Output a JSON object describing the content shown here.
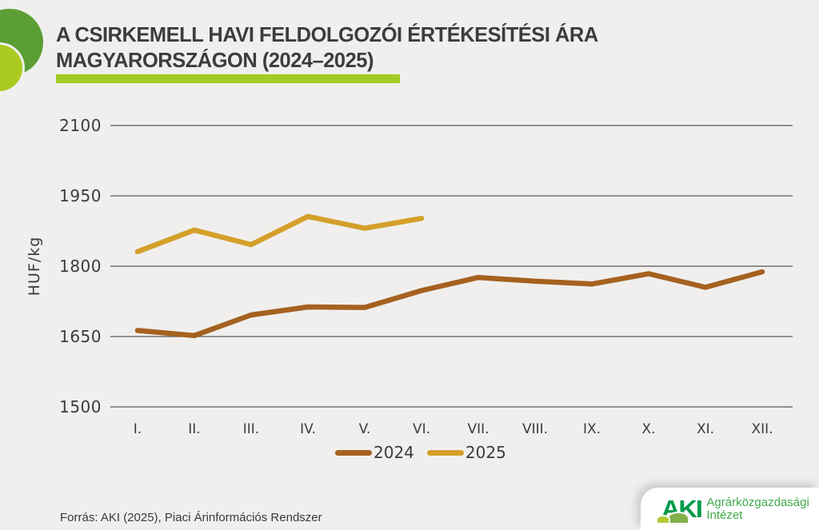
{
  "header": {
    "title_line1": "A CSIRKEMELL HAVI FELDOLGOZÓI ÉRTÉKESÍTÉSI ÁRA",
    "title_line2": "MAGYARORSZÁGON (2024–2025)"
  },
  "chart_data": {
    "type": "line",
    "title": "A csirkemell havi feldolgozói értékesítési ára Magyarországon (2024–2025)",
    "xlabel": "",
    "ylabel": "HUF/kg",
    "ylim": [
      1500,
      2100
    ],
    "yticks": [
      2100,
      1950,
      1800,
      1650,
      1500
    ],
    "categories": [
      "I.",
      "II.",
      "III.",
      "IV.",
      "V.",
      "VI.",
      "VII.",
      "VIII.",
      "IX.",
      "X.",
      "XI.",
      "XII."
    ],
    "grid": "horizontal",
    "legend_position": "bottom",
    "series": [
      {
        "name": "2024",
        "color": "#a5611f",
        "values": [
          1663,
          1652,
          1696,
          1713,
          1712,
          1748,
          1776,
          1768,
          1762,
          1784,
          1755,
          1788
        ]
      },
      {
        "name": "2025",
        "color": "#d4a02a",
        "values": [
          1831,
          1877,
          1846,
          1906,
          1881,
          1902
        ]
      }
    ]
  },
  "footer": {
    "source": "Forrás: AKI (2025), Piaci Árinformációs Rendszer",
    "logo": {
      "acronym": "AKI",
      "name_line1": "Agrárközgazdasági",
      "name_line2": "Intézet"
    }
  },
  "colors": {
    "background": "#f0efee",
    "title_text": "#3b3c3e",
    "accent_bar": "#a4cb23",
    "circle_dark_green": "#5b9e33",
    "circle_lime": "#abcb21",
    "gridline": "#57585a",
    "axis_text": "#3b3c3e",
    "series_2024": "#a5611f",
    "series_2025": "#d4a02a",
    "logo_green": "#009a4a",
    "logo_text_green": "#3faa4b"
  }
}
